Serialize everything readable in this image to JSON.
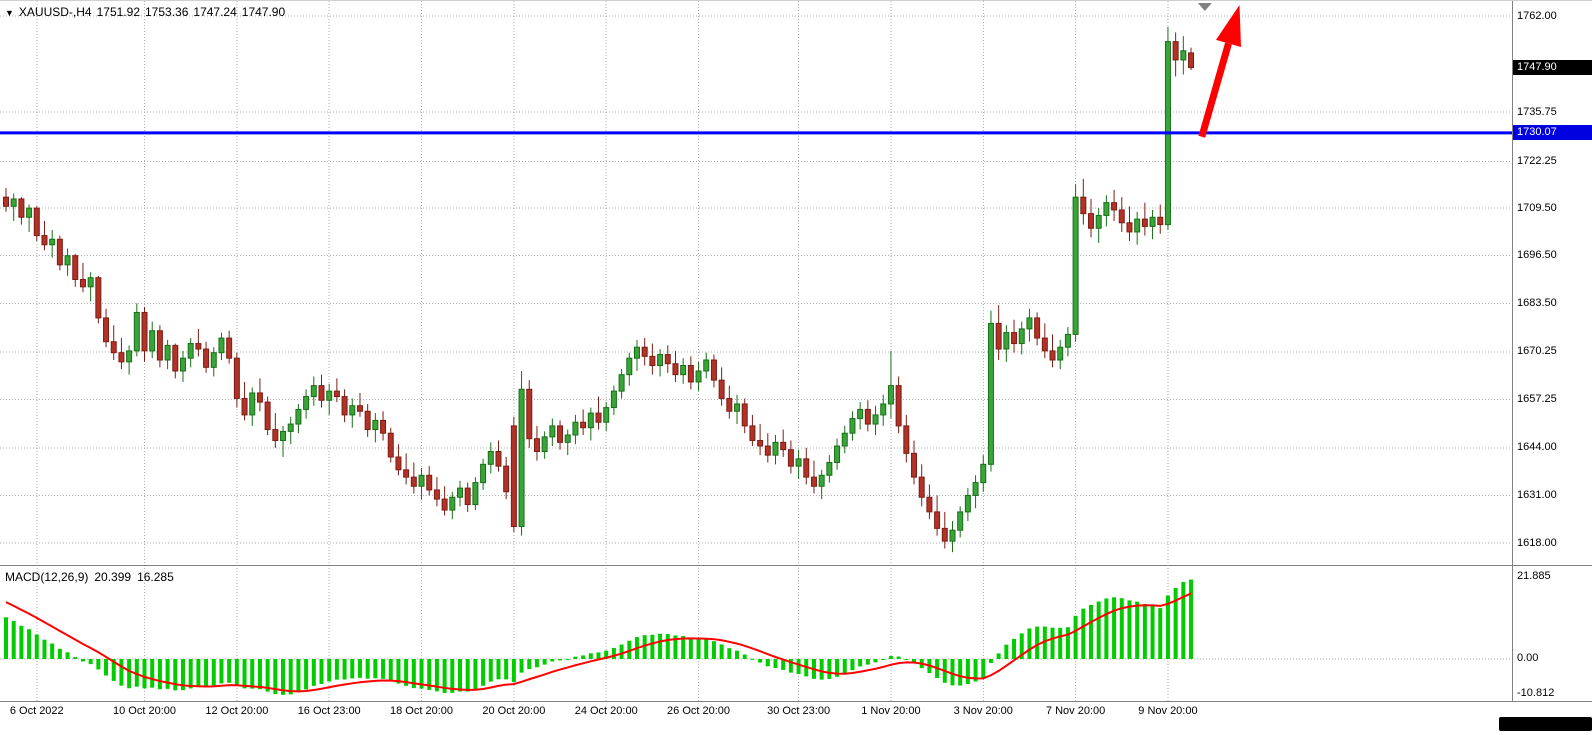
{
  "header": {
    "symbol": "XAUUSD-,H4",
    "open": "1751.92",
    "high": "1753.36",
    "low": "1747.24",
    "close": "1747.90",
    "dropdown_icon": "down-triangle-icon"
  },
  "macd_label": {
    "name": "MACD(12,26,9)",
    "main": "20.399",
    "signal": "16.285"
  },
  "price_axis": {
    "labels": [
      "1762.00",
      "1735.75",
      "1722.25",
      "1709.50",
      "1696.50",
      "1683.50",
      "1670.25",
      "1657.25",
      "1644.00",
      "1631.00",
      "1618.00"
    ],
    "current": "1747.90",
    "hline": "1730.07"
  },
  "macd_axis": {
    "labels": [
      "21.885",
      "0.00",
      "-10.812"
    ]
  },
  "time_axis": {
    "labels": [
      "6 Oct 2022",
      "10 Oct 20:00",
      "12 Oct 20:00",
      "16 Oct 23:00",
      "18 Oct 20:00",
      "20 Oct 20:00",
      "24 Oct 20:00",
      "26 Oct 20:00",
      "30 Oct 23:00",
      "1 Nov 20:00",
      "3 Nov 20:00",
      "7 Nov 20:00",
      "9 Nov 20:00"
    ]
  },
  "colors": {
    "background": "#FFFFFF",
    "grid": "#ADADAD",
    "bull_body": "#3AA33A",
    "bull_border": "#177017",
    "bear_body": "#B03228",
    "bear_border": "#7E1D14",
    "hline": "#0000FF",
    "arrow": "#FF0000",
    "macd_histogram": "#00CC00",
    "macd_signal": "#FF0000",
    "badge_current_bg": "#000000",
    "badge_hline_bg": "#0000E0",
    "divider": "#808080",
    "shift_marker": "#808080",
    "text": "#000000"
  },
  "chart_data": {
    "type": "candlestick",
    "symbol": "XAUUSD-",
    "timeframe": "H4",
    "title": "XAUUSD-,H4",
    "ohlc_display": {
      "open": 1751.92,
      "high": 1753.36,
      "low": 1747.24,
      "close": 1747.9
    },
    "ylim": [
      1618.0,
      1762.0
    ],
    "price_ticks": [
      1762.0,
      1735.75,
      1722.25,
      1709.5,
      1696.5,
      1683.5,
      1670.25,
      1657.25,
      1644.0,
      1631.0,
      1618.0
    ],
    "current_price": 1747.9,
    "hline": {
      "price": 1730.07,
      "color": "#0000FF"
    },
    "x_grid_candle_indices": [
      4,
      18,
      30,
      42,
      54,
      66,
      78,
      90,
      103,
      115,
      127,
      139,
      151
    ],
    "shift_marker_bar": 155.8,
    "candles": [
      [
        1712.5,
        1715,
        1708.5,
        1710
      ],
      [
        1710,
        1713.5,
        1706,
        1712
      ],
      [
        1712,
        1712.5,
        1705,
        1707
      ],
      [
        1707,
        1710.5,
        1703,
        1709.5
      ],
      [
        1709.5,
        1710,
        1700.5,
        1702
      ],
      [
        1702,
        1706,
        1698,
        1699.5
      ],
      [
        1699.5,
        1703.5,
        1696,
        1701
      ],
      [
        1701,
        1702,
        1692.5,
        1694
      ],
      [
        1694,
        1698.5,
        1691,
        1696.5
      ],
      [
        1696.5,
        1697,
        1688,
        1690
      ],
      [
        1690,
        1694.5,
        1686.5,
        1688
      ],
      [
        1688,
        1692,
        1684,
        1690.5
      ],
      [
        1690.5,
        1691,
        1678,
        1679.5
      ],
      [
        1679.5,
        1682,
        1671.5,
        1673
      ],
      [
        1673,
        1677.5,
        1668,
        1670
      ],
      [
        1670,
        1674,
        1665.5,
        1667.5
      ],
      [
        1667.5,
        1672,
        1664,
        1670.5
      ],
      [
        1670.5,
        1683.5,
        1669,
        1681
      ],
      [
        1681,
        1682.5,
        1667.5,
        1670.5
      ],
      [
        1670.5,
        1678.5,
        1668.5,
        1676
      ],
      [
        1676,
        1677.5,
        1666,
        1668
      ],
      [
        1668,
        1673.5,
        1665.5,
        1672
      ],
      [
        1672,
        1672.5,
        1663,
        1665
      ],
      [
        1665,
        1670.5,
        1662,
        1668.5
      ],
      [
        1668.5,
        1674,
        1666,
        1672.5
      ],
      [
        1672.5,
        1676.5,
        1669,
        1671
      ],
      [
        1671,
        1673,
        1664.5,
        1666
      ],
      [
        1666,
        1671.5,
        1663.5,
        1670
      ],
      [
        1670,
        1675.5,
        1668,
        1674
      ],
      [
        1674,
        1676,
        1667,
        1668.5
      ],
      [
        1668.5,
        1670,
        1655,
        1657.5
      ],
      [
        1657.5,
        1662,
        1651.5,
        1653
      ],
      [
        1653,
        1660.5,
        1650,
        1659
      ],
      [
        1659,
        1663,
        1654,
        1656.5
      ],
      [
        1656.5,
        1658,
        1647.5,
        1649
      ],
      [
        1649,
        1653.5,
        1644,
        1646
      ],
      [
        1646,
        1650,
        1641.5,
        1648.5
      ],
      [
        1648.5,
        1652.5,
        1645,
        1650.5
      ],
      [
        1650.5,
        1656,
        1648,
        1654.5
      ],
      [
        1654.5,
        1660,
        1652,
        1658
      ],
      [
        1658,
        1663.5,
        1655.5,
        1661
      ],
      [
        1661,
        1664,
        1655,
        1657
      ],
      [
        1657,
        1661.5,
        1653,
        1659.5
      ],
      [
        1659.5,
        1663,
        1656.5,
        1658
      ],
      [
        1658,
        1660,
        1651,
        1653
      ],
      [
        1653,
        1657.5,
        1649.5,
        1655.5
      ],
      [
        1655.5,
        1659,
        1652.5,
        1654
      ],
      [
        1654,
        1656,
        1647,
        1649
      ],
      [
        1649,
        1653.5,
        1645.5,
        1651.5
      ],
      [
        1651.5,
        1654,
        1646,
        1648
      ],
      [
        1648,
        1649.5,
        1640,
        1641.5
      ],
      [
        1641.5,
        1645,
        1636.5,
        1638
      ],
      [
        1638,
        1642.5,
        1634,
        1636
      ],
      [
        1636,
        1640,
        1631.5,
        1633.5
      ],
      [
        1633.5,
        1638.5,
        1630,
        1636.5
      ],
      [
        1636.5,
        1639,
        1631,
        1632.5
      ],
      [
        1632.5,
        1636,
        1628,
        1630
      ],
      [
        1630,
        1633.5,
        1625.5,
        1627
      ],
      [
        1627,
        1632,
        1624.5,
        1630.5
      ],
      [
        1630.5,
        1635,
        1628,
        1633
      ],
      [
        1633,
        1634.5,
        1626.5,
        1628.5
      ],
      [
        1628.5,
        1636,
        1627,
        1634.5
      ],
      [
        1634.5,
        1641,
        1632.5,
        1639.5
      ],
      [
        1639.5,
        1645.5,
        1637,
        1643
      ],
      [
        1643,
        1646,
        1637.5,
        1639
      ],
      [
        1639,
        1641.5,
        1630,
        1632
      ],
      [
        1650,
        1652.5,
        1621,
        1622.5
      ],
      [
        1622.5,
        1665,
        1620,
        1660
      ],
      [
        1660,
        1662.5,
        1644,
        1646.5
      ],
      [
        1646.5,
        1650,
        1640.5,
        1643
      ],
      [
        1643,
        1648.5,
        1641,
        1647
      ],
      [
        1647,
        1652,
        1644.5,
        1650
      ],
      [
        1650,
        1651.5,
        1643.5,
        1645.5
      ],
      [
        1645.5,
        1649,
        1642,
        1647.5
      ],
      [
        1647.5,
        1653,
        1645,
        1651
      ],
      [
        1651,
        1654.5,
        1647.5,
        1649.5
      ],
      [
        1649.5,
        1655,
        1646,
        1653.5
      ],
      [
        1653.5,
        1658,
        1649,
        1651
      ],
      [
        1651,
        1656.5,
        1648.5,
        1655
      ],
      [
        1655,
        1661,
        1653,
        1659.5
      ],
      [
        1659.5,
        1665.5,
        1657.5,
        1664
      ],
      [
        1664,
        1670,
        1661,
        1668.5
      ],
      [
        1668.5,
        1673.5,
        1665,
        1671.5
      ],
      [
        1671.5,
        1674,
        1666.5,
        1669
      ],
      [
        1669,
        1672.5,
        1664,
        1666.5
      ],
      [
        1666.5,
        1671,
        1663.5,
        1669.5
      ],
      [
        1669.5,
        1672,
        1664.5,
        1667
      ],
      [
        1667,
        1670.5,
        1662,
        1664
      ],
      [
        1664,
        1668.5,
        1661.5,
        1666.5
      ],
      [
        1666.5,
        1669,
        1660,
        1662
      ],
      [
        1662,
        1667.5,
        1659.5,
        1665
      ],
      [
        1665,
        1670,
        1663,
        1668
      ],
      [
        1668,
        1669.5,
        1660.5,
        1662.5
      ],
      [
        1662.5,
        1666,
        1655.5,
        1657.5
      ],
      [
        1657.5,
        1661,
        1652,
        1654
      ],
      [
        1654,
        1658.5,
        1650.5,
        1656
      ],
      [
        1656,
        1657.5,
        1648,
        1650
      ],
      [
        1650,
        1653,
        1644.5,
        1646
      ],
      [
        1646,
        1650.5,
        1642,
        1644.5
      ],
      [
        1644.5,
        1648,
        1640,
        1642
      ],
      [
        1642,
        1647.5,
        1639.5,
        1645.5
      ],
      [
        1645.5,
        1649,
        1641.5,
        1643.5
      ],
      [
        1643.5,
        1646,
        1637,
        1639
      ],
      [
        1639,
        1643.5,
        1635.5,
        1641
      ],
      [
        1641,
        1644,
        1634,
        1636
      ],
      [
        1636,
        1640.5,
        1631.5,
        1633.5
      ],
      [
        1633.5,
        1638,
        1630,
        1636.5
      ],
      [
        1636.5,
        1642,
        1634.5,
        1640
      ],
      [
        1640,
        1646.5,
        1638,
        1644.5
      ],
      [
        1644.5,
        1650,
        1642.5,
        1648
      ],
      [
        1648,
        1654,
        1646,
        1652
      ],
      [
        1652,
        1656.5,
        1649,
        1654.5
      ],
      [
        1654.5,
        1657,
        1648.5,
        1650.5
      ],
      [
        1650.5,
        1655.5,
        1647.5,
        1653
      ],
      [
        1653,
        1658.5,
        1650,
        1656
      ],
      [
        1656,
        1670.5,
        1652,
        1661
      ],
      [
        1661,
        1663.5,
        1648,
        1650
      ],
      [
        1650,
        1653,
        1640,
        1642.5
      ],
      [
        1642.5,
        1646,
        1634,
        1636
      ],
      [
        1636,
        1639.5,
        1628,
        1630.5
      ],
      [
        1630.5,
        1634,
        1624.5,
        1626.5
      ],
      [
        1626.5,
        1631,
        1620,
        1622
      ],
      [
        1622,
        1626.5,
        1616.5,
        1618.5
      ],
      [
        1618.5,
        1624,
        1615.5,
        1621.5
      ],
      [
        1621.5,
        1628,
        1619.5,
        1626.5
      ],
      [
        1626.5,
        1633,
        1624,
        1631
      ],
      [
        1631,
        1636.5,
        1627.5,
        1634.5
      ],
      [
        1634.5,
        1642,
        1632,
        1639.5
      ],
      [
        1639.5,
        1681.5,
        1637.5,
        1678
      ],
      [
        1678,
        1683,
        1668,
        1671
      ],
      [
        1671,
        1677.5,
        1667.5,
        1675.5
      ],
      [
        1675.5,
        1679,
        1670,
        1672.5
      ],
      [
        1672.5,
        1678.5,
        1669.5,
        1676.5
      ],
      [
        1676.5,
        1682,
        1673,
        1679.5
      ],
      [
        1679.5,
        1681,
        1672,
        1674
      ],
      [
        1674,
        1678,
        1668.5,
        1670.5
      ],
      [
        1670.5,
        1675,
        1666,
        1668
      ],
      [
        1668,
        1673.5,
        1665.5,
        1671.5
      ],
      [
        1671.5,
        1677,
        1669,
        1675
      ],
      [
        1675,
        1716,
        1673,
        1712.5
      ],
      [
        1712.5,
        1717.5,
        1705,
        1708
      ],
      [
        1708,
        1712,
        1701.5,
        1704
      ],
      [
        1704,
        1709.5,
        1700,
        1707.5
      ],
      [
        1707.5,
        1713,
        1704.5,
        1711
      ],
      [
        1711,
        1714.5,
        1706,
        1709
      ],
      [
        1709,
        1712.5,
        1703,
        1705.5
      ],
      [
        1705.5,
        1710,
        1700.5,
        1703
      ],
      [
        1703,
        1708.5,
        1699.5,
        1706.5
      ],
      [
        1706.5,
        1711,
        1702,
        1704.5
      ],
      [
        1704.5,
        1709,
        1701,
        1707
      ],
      [
        1707,
        1710.5,
        1702.5,
        1705
      ],
      [
        1705,
        1759,
        1703.5,
        1755
      ],
      [
        1755,
        1757.5,
        1745.5,
        1750
      ],
      [
        1750,
        1756.5,
        1746,
        1752.5
      ],
      [
        1751.92,
        1753.36,
        1747.24,
        1747.9
      ]
    ],
    "macd": {
      "fast": 12,
      "slow": 26,
      "signal_period": 9,
      "display_main": 20.399,
      "display_signal": 16.285,
      "scale": {
        "max": 21.885,
        "zero": 0.0,
        "min": -10.812
      },
      "seed": {
        "fast_offset": 4,
        "slow_offset": -7,
        "signal": 15
      }
    },
    "annotations": {
      "arrow": {
        "type": "arrow-up",
        "color": "#FF0000",
        "tail_bar": 155.4,
        "tail_price": 1729.0,
        "tip_bar": 160.3,
        "tip_price": 1765.0
      }
    }
  }
}
